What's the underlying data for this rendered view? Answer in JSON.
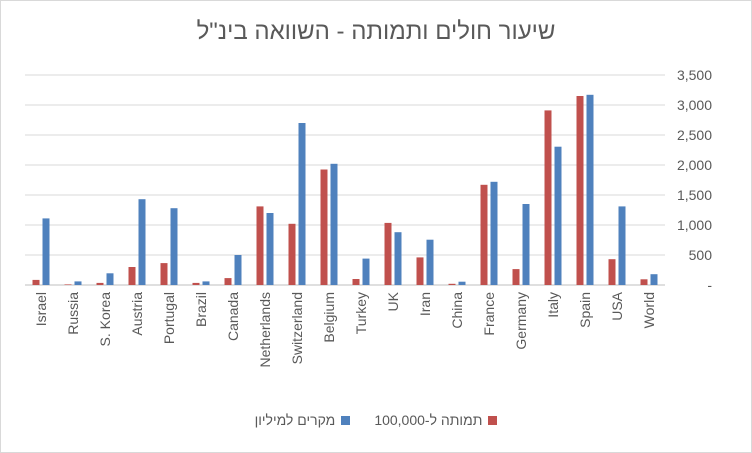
{
  "chart_data": {
    "type": "bar",
    "title": "שיעור חולים ותמותה - השוואה בינ\"ל",
    "categories": [
      "Israel",
      "Russia",
      "S. Korea",
      "Austria",
      "Portugal",
      "Brazil",
      "Canada",
      "Netherlands",
      "Switzerland",
      "Belgium",
      "Turkey",
      "UK",
      "Iran",
      "China",
      "France",
      "Germany",
      "Italy",
      "Spain",
      "USA",
      "World"
    ],
    "series": [
      {
        "name": "תמותה ל-100,000",
        "color": "#c0504d",
        "values": [
          85,
          10,
          35,
          300,
          365,
          35,
          115,
          1310,
          1020,
          1925,
          100,
          1035,
          460,
          20,
          1670,
          265,
          2910,
          3150,
          430,
          95
        ]
      },
      {
        "name": "מקרים למיליון",
        "color": "#4f81bd",
        "values": [
          1110,
          60,
          195,
          1430,
          1280,
          60,
          500,
          1200,
          2700,
          2020,
          440,
          880,
          755,
          55,
          1720,
          1350,
          2305,
          3170,
          1310,
          180
        ]
      }
    ],
    "ylim": [
      0,
      3500
    ],
    "yticks": [
      0,
      500,
      1000,
      1500,
      2000,
      2500,
      3000,
      3500
    ],
    "ytick_labels": [
      "-",
      "500",
      "1,000",
      "1,500",
      "2,000",
      "2,500",
      "3,000",
      "3,500"
    ],
    "gridlines": true,
    "yaxis_side": "right",
    "legend_position": "bottom"
  }
}
